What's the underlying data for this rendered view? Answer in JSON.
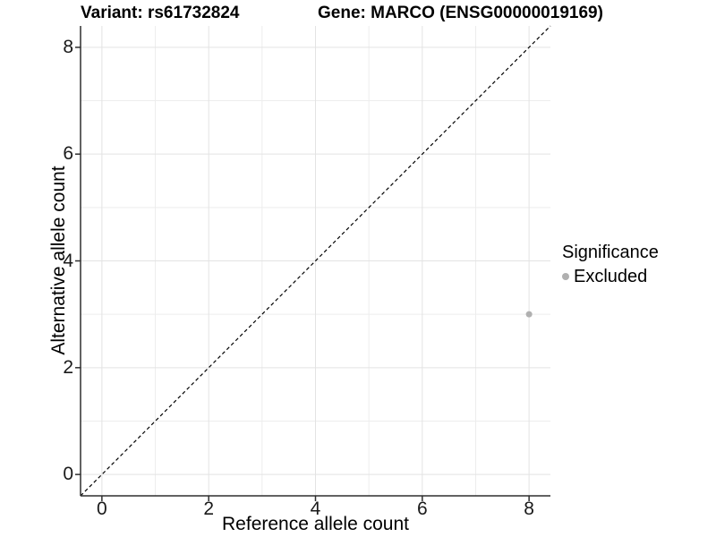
{
  "figure": {
    "title_left": "Variant: rs61732824",
    "title_right": "Gene: MARCO (ENSG00000019169)"
  },
  "chart_data": {
    "type": "scatter",
    "title_left": "Variant: rs61732824",
    "title_right": "Gene: MARCO (ENSG00000019169)",
    "xlabel": "Reference allele count",
    "ylabel": "Alternative allele count",
    "xlim": [
      -0.4,
      8.4
    ],
    "ylim": [
      -0.4,
      8.4
    ],
    "x_ticks": [
      0,
      2,
      4,
      6,
      8
    ],
    "y_ticks": [
      0,
      2,
      4,
      6,
      8
    ],
    "x_minor": [
      1,
      3,
      5,
      7
    ],
    "y_minor": [
      1,
      3,
      5,
      7
    ],
    "grid": "major+minor",
    "identity_line": {
      "slope": 1,
      "intercept": 0,
      "style": "dashed",
      "color": "#000000"
    },
    "series": [
      {
        "name": "Excluded",
        "color": "#b0b0b0",
        "points": [
          {
            "x": 8,
            "y": 3
          }
        ]
      }
    ],
    "legend": {
      "title": "Significance",
      "position": "right",
      "items": [
        {
          "label": "Excluded",
          "color": "#b0b0b0",
          "marker": "circle"
        }
      ]
    },
    "colors": {
      "grid_major": "#e3e3e3",
      "grid_minor": "#ededed",
      "axis_line": "#2e2e2e",
      "tick_label": "#1a1a1a",
      "background": "#ffffff"
    }
  }
}
